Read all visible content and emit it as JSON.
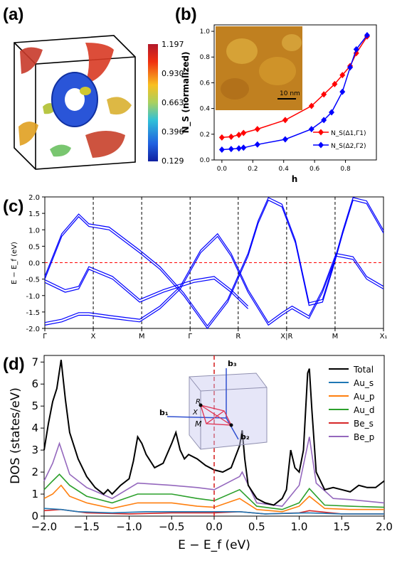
{
  "panels": {
    "a": "(a)",
    "b": "(b)",
    "c": "(c)",
    "d": "(d)"
  },
  "colorbar": {
    "ticks": [
      "1.197",
      "0.930",
      "0.663",
      "0.396",
      "0.129"
    ]
  },
  "chart_data": [
    {
      "panel": "b",
      "type": "line",
      "xlabel": "h",
      "ylabel": "N_S (normalized)",
      "xlim": [
        -0.05,
        1.0
      ],
      "ylim": [
        0.0,
        1.05
      ],
      "xticks": [
        "0.0",
        "0.2",
        "0.4",
        "0.6",
        "0.8"
      ],
      "yticks": [
        "0.0",
        "0.2",
        "0.4",
        "0.6",
        "0.8",
        "1.0"
      ],
      "legend_position": "center-right",
      "inset_scalebar": "10 nm",
      "series": [
        {
          "name": "N_S(Δ1,Γ1)",
          "color": "#ff0000",
          "marker": "diamond",
          "x": [
            0.0,
            0.06,
            0.11,
            0.14,
            0.23,
            0.41,
            0.58,
            0.66,
            0.73,
            0.78,
            0.83,
            0.87,
            0.94
          ],
          "y": [
            0.175,
            0.18,
            0.195,
            0.21,
            0.24,
            0.31,
            0.42,
            0.51,
            0.59,
            0.66,
            0.73,
            0.83,
            0.96
          ]
        },
        {
          "name": "N_S(Δ2,Γ2)",
          "color": "#0000ff",
          "marker": "diamond",
          "x": [
            0.0,
            0.06,
            0.11,
            0.14,
            0.23,
            0.41,
            0.58,
            0.66,
            0.71,
            0.78,
            0.83,
            0.87,
            0.94
          ],
          "y": [
            0.08,
            0.085,
            0.09,
            0.095,
            0.12,
            0.16,
            0.24,
            0.31,
            0.37,
            0.53,
            0.72,
            0.86,
            0.97
          ]
        }
      ]
    },
    {
      "panel": "c",
      "type": "line",
      "ylabel": "E − E_f (eV)",
      "ylim": [
        -2.0,
        2.0
      ],
      "yticks": [
        "2.0",
        "1.5",
        "1.0",
        "0.5",
        "0.0",
        "-0.5",
        "-1.0",
        "-1.5",
        "-2.0"
      ],
      "kpath_labels": [
        "Γ",
        "X",
        "M",
        "Γ",
        "R",
        "X|R",
        "M",
        "X₁"
      ],
      "fermi_level": 0.0,
      "band_color": "#0000ff",
      "bands": [
        {
          "x": [
            0,
            0.05,
            0.1,
            0.13,
            0.19,
            0.28,
            0.34,
            0.41,
            0.48,
            0.54,
            0.6
          ],
          "y": [
            -0.5,
            0.8,
            1.4,
            1.1,
            1.0,
            0.3,
            -0.2,
            -1.0,
            -2.0,
            -1.2,
            0.2
          ]
        },
        {
          "x": [
            0.6,
            0.63,
            0.66,
            0.7,
            0.74,
            0.78,
            0.82,
            0.85,
            0.88,
            0.91,
            0.95,
            1.0
          ],
          "y": [
            0.2,
            1.2,
            1.9,
            1.7,
            0.6,
            -1.3,
            -1.2,
            -0.2,
            0.9,
            1.9,
            1.8,
            0.9
          ]
        },
        {
          "x": [
            0,
            0.06,
            0.1,
            0.13,
            0.2,
            0.28,
            0.35,
            0.44,
            0.5,
            0.55,
            0.6
          ],
          "y": [
            -0.6,
            -0.9,
            -0.8,
            -0.2,
            -0.5,
            -1.2,
            -0.9,
            -0.6,
            -0.5,
            -0.9,
            -1.4
          ]
        },
        {
          "x": [
            0,
            0.05,
            0.1,
            0.13,
            0.2,
            0.28,
            0.34,
            0.4,
            0.46,
            0.51,
            0.55,
            0.6
          ],
          "y": [
            -1.9,
            -1.8,
            -1.6,
            -1.6,
            -1.7,
            -1.8,
            -1.4,
            -0.8,
            0.3,
            0.8,
            0.2,
            -0.9
          ]
        },
        {
          "x": [
            0.6,
            0.66,
            0.7,
            0.73,
            0.78,
            0.82,
            0.86,
            0.91,
            0.95,
            1.0
          ],
          "y": [
            -0.9,
            -1.9,
            -1.6,
            -1.4,
            -1.7,
            -0.9,
            0.2,
            0.1,
            -0.5,
            -0.8
          ]
        }
      ]
    },
    {
      "panel": "d",
      "type": "line",
      "xlabel": "E − E_f (eV)",
      "ylabel": "DOS (states/eV)",
      "xlim": [
        -2.0,
        2.0
      ],
      "ylim": [
        0,
        7.3
      ],
      "xticks": [
        "−2.0",
        "−1.5",
        "−1.0",
        "−0.5",
        "0.0",
        "0.5",
        "1.0",
        "1.5",
        "2.0"
      ],
      "yticks": [
        "0",
        "1",
        "2",
        "3",
        "4",
        "5",
        "6",
        "7"
      ],
      "fermi_level": 0.0,
      "legend_position": "top-right",
      "inset_labels": {
        "b3": "b₃",
        "b1": "b₁",
        "b2": "b₂",
        "R": "R",
        "M": "M",
        "X": "X"
      },
      "series": [
        {
          "name": "Total",
          "color": "#000000",
          "x": [
            -2.0,
            -1.95,
            -1.9,
            -1.85,
            -1.8,
            -1.75,
            -1.7,
            -1.6,
            -1.5,
            -1.4,
            -1.3,
            -1.25,
            -1.2,
            -1.1,
            -1.0,
            -0.95,
            -0.9,
            -0.85,
            -0.8,
            -0.7,
            -0.6,
            -0.5,
            -0.45,
            -0.4,
            -0.35,
            -0.3,
            -0.2,
            -0.1,
            0.0,
            0.1,
            0.2,
            0.3,
            0.33,
            0.36,
            0.4,
            0.5,
            0.6,
            0.7,
            0.8,
            0.85,
            0.9,
            0.95,
            1.0,
            1.05,
            1.1,
            1.12,
            1.15,
            1.2,
            1.3,
            1.4,
            1.5,
            1.6,
            1.7,
            1.8,
            1.9,
            2.0
          ],
          "y": [
            3.0,
            4.2,
            5.2,
            5.8,
            7.1,
            5.3,
            3.8,
            2.6,
            1.8,
            1.3,
            1.0,
            1.2,
            1.0,
            1.4,
            1.7,
            2.5,
            3.6,
            3.3,
            2.8,
            2.2,
            2.4,
            3.3,
            3.8,
            3.0,
            2.6,
            2.8,
            2.6,
            2.3,
            2.1,
            2.0,
            2.2,
            3.2,
            3.9,
            2.6,
            1.4,
            0.8,
            0.6,
            0.5,
            0.8,
            1.2,
            3.0,
            2.2,
            2.0,
            3.0,
            6.5,
            6.7,
            4.8,
            2.0,
            1.2,
            1.3,
            1.2,
            1.1,
            1.4,
            1.3,
            1.3,
            1.6
          ]
        },
        {
          "name": "Au_s",
          "color": "#1f77b4",
          "x": [
            -2.0,
            -1.8,
            -1.6,
            -1.2,
            -0.8,
            -0.4,
            0.0,
            0.3,
            0.6,
            1.1,
            1.5,
            2.0
          ],
          "y": [
            0.35,
            0.3,
            0.2,
            0.15,
            0.2,
            0.2,
            0.2,
            0.2,
            0.1,
            0.15,
            0.1,
            0.1
          ]
        },
        {
          "name": "Au_p",
          "color": "#ff7f0e",
          "x": [
            -2.0,
            -1.9,
            -1.8,
            -1.7,
            -1.5,
            -1.2,
            -0.9,
            -0.5,
            -0.2,
            0.0,
            0.3,
            0.5,
            0.8,
            1.0,
            1.12,
            1.3,
            1.6,
            2.0
          ],
          "y": [
            0.8,
            1.0,
            1.4,
            0.9,
            0.6,
            0.35,
            0.6,
            0.6,
            0.45,
            0.4,
            0.8,
            0.3,
            0.2,
            0.45,
            0.9,
            0.35,
            0.3,
            0.3
          ]
        },
        {
          "name": "Au_d",
          "color": "#2ca02c",
          "x": [
            -2.0,
            -1.9,
            -1.82,
            -1.7,
            -1.5,
            -1.2,
            -0.9,
            -0.5,
            -0.2,
            0.0,
            0.3,
            0.5,
            0.8,
            1.0,
            1.12,
            1.3,
            1.6,
            2.0
          ],
          "y": [
            1.2,
            1.6,
            1.9,
            1.4,
            0.9,
            0.6,
            1.0,
            1.0,
            0.8,
            0.7,
            1.2,
            0.45,
            0.3,
            0.6,
            1.25,
            0.5,
            0.45,
            0.4
          ]
        },
        {
          "name": "Be_s",
          "color": "#d62728",
          "x": [
            -2.0,
            -1.8,
            -1.5,
            -1.0,
            -0.5,
            0.0,
            0.3,
            0.6,
            1.0,
            1.12,
            1.5,
            2.0
          ],
          "y": [
            0.25,
            0.3,
            0.15,
            0.1,
            0.15,
            0.15,
            0.2,
            0.1,
            0.15,
            0.25,
            0.1,
            0.1
          ]
        },
        {
          "name": "Be_p",
          "color": "#9467bd",
          "x": [
            -2.0,
            -1.9,
            -1.82,
            -1.7,
            -1.5,
            -1.2,
            -0.9,
            -0.5,
            -0.2,
            0.0,
            0.3,
            0.33,
            0.5,
            0.8,
            1.0,
            1.12,
            1.2,
            1.4,
            1.6,
            2.0
          ],
          "y": [
            1.6,
            2.4,
            3.3,
            1.9,
            1.3,
            0.8,
            1.5,
            1.4,
            1.3,
            1.2,
            1.8,
            2.0,
            0.6,
            0.45,
            1.4,
            3.6,
            1.5,
            0.8,
            0.75,
            0.6
          ]
        }
      ]
    }
  ]
}
